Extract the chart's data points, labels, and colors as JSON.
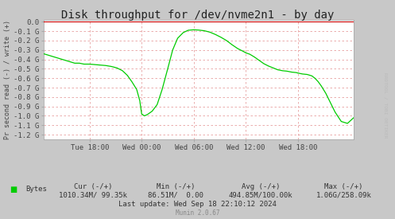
{
  "title": "Disk throughput for /dev/nvme2n1 - by day",
  "ylabel": "Pr second read (-) / write (+)",
  "background_color": "#c8c8c8",
  "plot_bg_color": "#ffffff",
  "grid_color": "#e8a0a0",
  "line_color": "#00cc00",
  "top_line_color": "#cc0000",
  "axis_color": "#aaaaaa",
  "rrdtool_color": "#cccccc",
  "ylim": [
    -1.25,
    0.02
  ],
  "yticks": [
    0.0,
    -0.1,
    -0.2,
    -0.3,
    -0.4,
    -0.5,
    -0.6,
    -0.7,
    -0.8,
    -0.9,
    -1.0,
    -1.1,
    -1.2
  ],
  "ytick_labels": [
    "0.0",
    "-0.1 G",
    "-0.2 G",
    "-0.3 G",
    "-0.4 G",
    "-0.5 G",
    "-0.6 G",
    "-0.7 G",
    "-0.8 G",
    "-0.9 G",
    "-1.0 G",
    "-1.1 G",
    "-1.2 G"
  ],
  "xtick_labels": [
    "Tue 18:00",
    "Wed 00:00",
    "Wed 06:00",
    "Wed 12:00",
    "Wed 18:00"
  ],
  "xtick_positions": [
    0.148,
    0.316,
    0.484,
    0.652,
    0.82
  ],
  "legend_label": "Bytes",
  "legend_color": "#00cc00",
  "cur_label": "Cur (-/+)",
  "cur_value": "1010.34M/ 99.35k",
  "min_label": "Min (-/+)",
  "min_value": "86.51M/  0.00",
  "avg_label": "Avg (-/+)",
  "avg_value": "494.85M/100.00k",
  "max_label": "Max (-/+)",
  "max_value": "1.06G/258.09k",
  "last_update": "Last update: Wed Sep 18 22:10:12 2024",
  "munin_version": "Munin 2.0.67",
  "rrdtool_label": "RRDTOOL / TOBI OETIKER",
  "title_fontsize": 10,
  "axis_fontsize": 6.5,
  "legend_fontsize": 6.5,
  "x_data": [
    0.0,
    0.02,
    0.04,
    0.06,
    0.08,
    0.1,
    0.115,
    0.13,
    0.148,
    0.165,
    0.182,
    0.2,
    0.218,
    0.236,
    0.254,
    0.27,
    0.285,
    0.3,
    0.31,
    0.316,
    0.325,
    0.335,
    0.35,
    0.366,
    0.382,
    0.4,
    0.416,
    0.432,
    0.45,
    0.466,
    0.484,
    0.5,
    0.518,
    0.536,
    0.554,
    0.572,
    0.59,
    0.608,
    0.626,
    0.644,
    0.652,
    0.665,
    0.68,
    0.695,
    0.71,
    0.725,
    0.74,
    0.755,
    0.77,
    0.785,
    0.8,
    0.815,
    0.82,
    0.835,
    0.85,
    0.865,
    0.875,
    0.885,
    0.895,
    0.91,
    0.925,
    0.94,
    0.96,
    0.98,
    1.0
  ],
  "y_data": [
    -0.34,
    -0.36,
    -0.38,
    -0.4,
    -0.42,
    -0.44,
    -0.44,
    -0.45,
    -0.45,
    -0.455,
    -0.46,
    -0.465,
    -0.475,
    -0.49,
    -0.52,
    -0.57,
    -0.64,
    -0.72,
    -0.84,
    -0.98,
    -1.0,
    -0.985,
    -0.95,
    -0.88,
    -0.72,
    -0.5,
    -0.3,
    -0.175,
    -0.115,
    -0.09,
    -0.085,
    -0.088,
    -0.095,
    -0.11,
    -0.135,
    -0.165,
    -0.2,
    -0.245,
    -0.285,
    -0.315,
    -0.33,
    -0.345,
    -0.375,
    -0.41,
    -0.445,
    -0.47,
    -0.49,
    -0.51,
    -0.52,
    -0.525,
    -0.535,
    -0.54,
    -0.545,
    -0.555,
    -0.56,
    -0.575,
    -0.6,
    -0.635,
    -0.68,
    -0.76,
    -0.86,
    -0.96,
    -1.06,
    -1.08,
    -1.02
  ]
}
